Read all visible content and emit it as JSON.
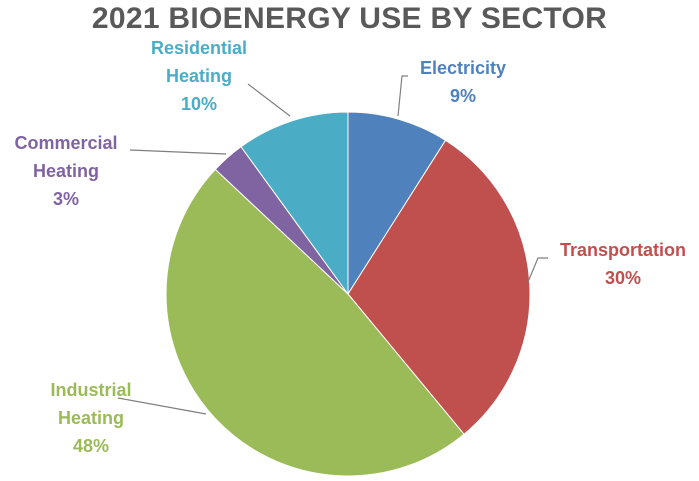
{
  "chart_data": {
    "type": "pie",
    "title": "2021 BIOENERGY USE BY SECTOR",
    "slices": [
      {
        "label": "Electricity",
        "value": 9,
        "value_label": "9%",
        "color": "#4f81bd"
      },
      {
        "label": "Transportation",
        "value": 30,
        "value_label": "30%",
        "color": "#c0504d"
      },
      {
        "label": "Industrial Heating",
        "label_lines": [
          "Industrial",
          "Heating"
        ],
        "value": 48,
        "value_label": "48%",
        "color": "#9bbb59"
      },
      {
        "label": "Commercial Heating",
        "label_lines": [
          "Commercial",
          "Heating"
        ],
        "value": 3,
        "value_label": "3%",
        "color": "#8064a2"
      },
      {
        "label": "Residential Heating",
        "label_lines": [
          "Residential",
          "Heating"
        ],
        "value": 10,
        "value_label": "10%",
        "color": "#4bacc6"
      }
    ],
    "legend": "none",
    "label_color": "#7f7f7f"
  }
}
